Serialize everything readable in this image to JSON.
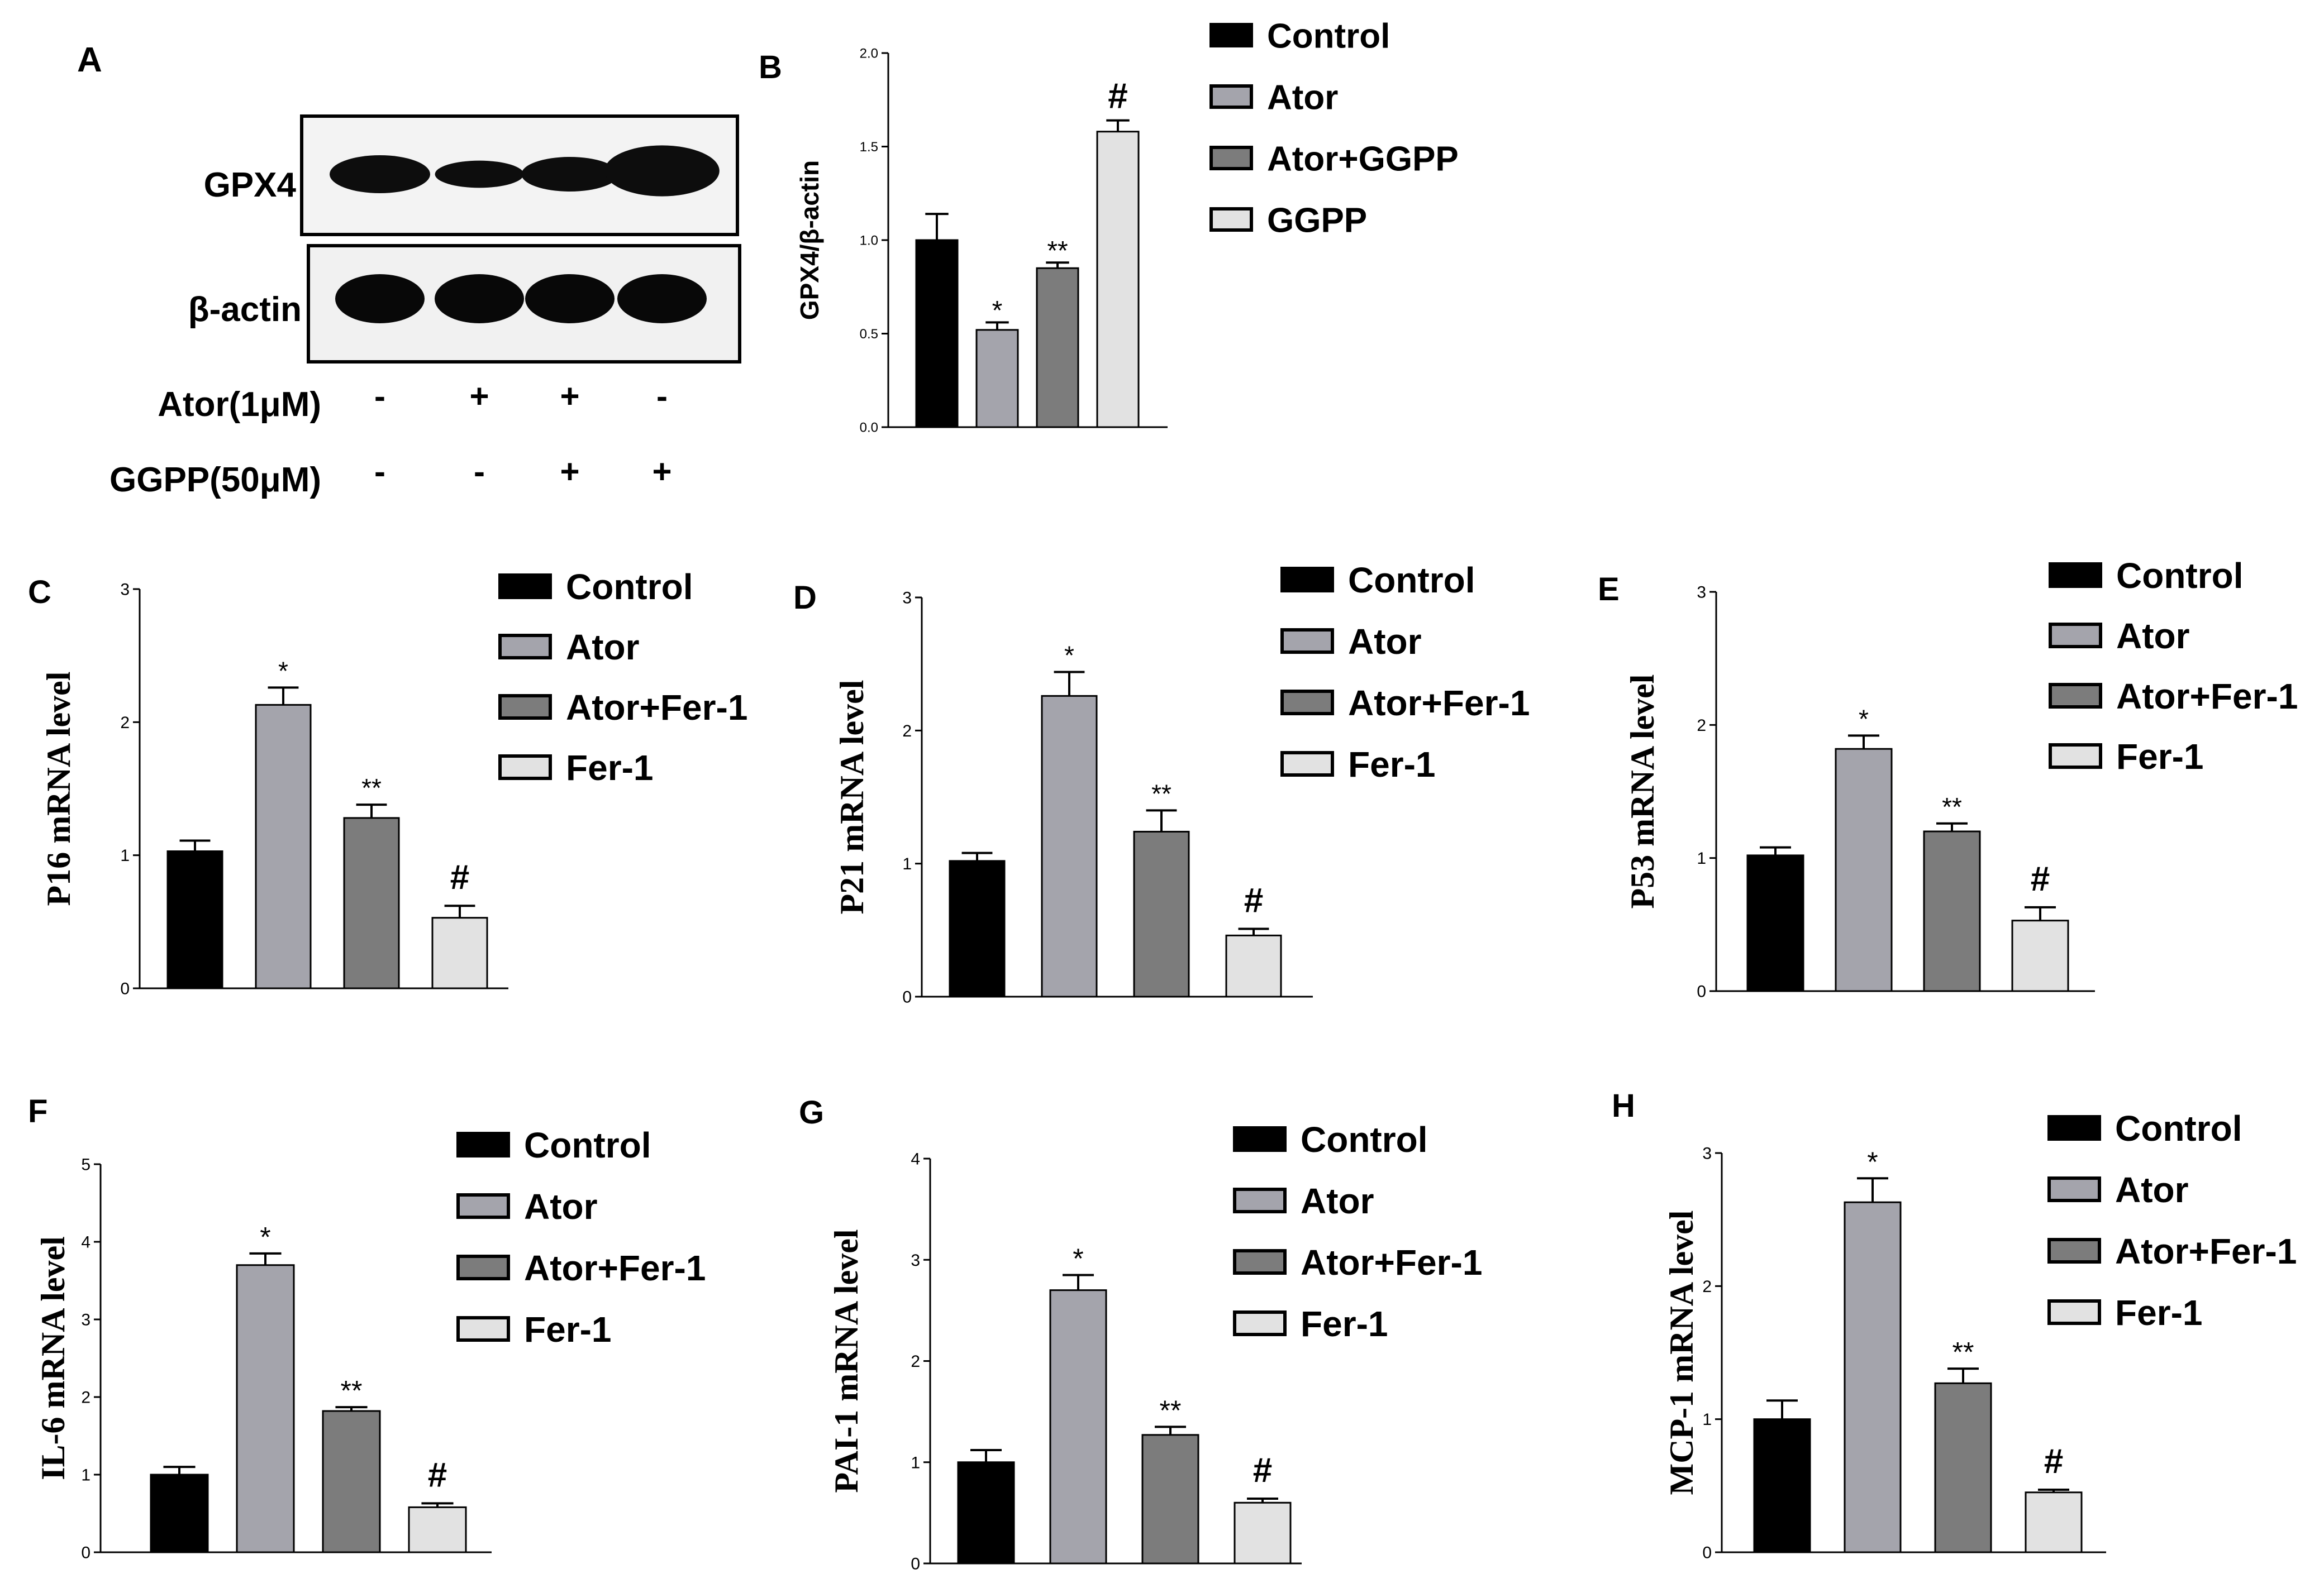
{
  "colors": {
    "control": "#000000",
    "ator": "#a4a4ac",
    "combo": "#7c7c7c",
    "single": "#e2e2e2",
    "axis": "#000000"
  },
  "western_blot": {
    "panel_letter": "A",
    "rows": [
      "GPX4",
      "β-actin"
    ],
    "treatments": [
      {
        "label": "Ator(1μM)",
        "marks": [
          "-",
          "+",
          "+",
          "-"
        ]
      },
      {
        "label": "GGPP(50μM)",
        "marks": [
          "-",
          "-",
          "+",
          "+"
        ]
      }
    ],
    "band_intensity": {
      "GPX4": [
        1.0,
        0.52,
        0.85,
        1.58
      ],
      "β-actin": [
        1.0,
        1.0,
        1.0,
        1.0
      ]
    }
  },
  "chart_data": [
    {
      "panel": "B",
      "type": "bar",
      "ylabel": "GPX4/β-actin",
      "ylabel_serif": false,
      "categories": [
        "Control",
        "Ator",
        "Ator+GGPP",
        "GGPP"
      ],
      "values": [
        1.0,
        0.52,
        0.85,
        1.58
      ],
      "errors": [
        0.14,
        0.04,
        0.03,
        0.06
      ],
      "significance": [
        "",
        "*",
        "**",
        "#"
      ],
      "ylim": [
        0,
        2.0
      ],
      "ticks": [
        0.0,
        0.5,
        1.0,
        1.5,
        2.0
      ],
      "tick_labels": [
        "0.0",
        "0.5",
        "1.0",
        "1.5",
        "2.0"
      ],
      "legend": [
        "Control",
        "Ator",
        "Ator+GGPP",
        "GGPP"
      ]
    },
    {
      "panel": "C",
      "panel_label": "C",
      "type": "bar",
      "ylabel": "P16 mRNA level",
      "ylabel_serif": true,
      "categories": [
        "Control",
        "Ator",
        "Ator+Fer-1",
        "Fer-1"
      ],
      "values": [
        1.03,
        2.13,
        1.28,
        0.53
      ],
      "errors": [
        0.08,
        0.13,
        0.1,
        0.09
      ],
      "significance": [
        "",
        "*",
        "**",
        "#"
      ],
      "ylim": [
        0,
        3
      ],
      "ticks": [
        0,
        1,
        2,
        3
      ],
      "tick_labels": [
        "0",
        "1",
        "2",
        "3"
      ],
      "legend": [
        "Control",
        "Ator",
        "Ator+Fer-1",
        "Fer-1"
      ]
    },
    {
      "panel": "D",
      "panel_label": "D",
      "type": "bar",
      "ylabel": "P21 mRNA level",
      "ylabel_serif": true,
      "categories": [
        "Control",
        "Ator",
        "Ator+Fer-1",
        "Fer-1"
      ],
      "values": [
        1.02,
        2.26,
        1.24,
        0.46
      ],
      "errors": [
        0.06,
        0.18,
        0.16,
        0.05
      ],
      "significance": [
        "",
        "*",
        "**",
        "#"
      ],
      "ylim": [
        0,
        3
      ],
      "ticks": [
        0,
        1,
        2,
        3
      ],
      "tick_labels": [
        "0",
        "1",
        "2",
        "3"
      ],
      "legend": [
        "Control",
        "Ator",
        "Ator+Fer-1",
        "Fer-1"
      ]
    },
    {
      "panel": "E",
      "panel_label": "E",
      "type": "bar",
      "ylabel": "P53 mRNA level",
      "ylabel_serif": true,
      "categories": [
        "Control",
        "Ator",
        "Ator+Fer-1",
        "Fer-1"
      ],
      "values": [
        1.02,
        1.82,
        1.2,
        0.53
      ],
      "errors": [
        0.06,
        0.1,
        0.06,
        0.1
      ],
      "significance": [
        "",
        "*",
        "**",
        "#"
      ],
      "ylim": [
        0,
        3
      ],
      "ticks": [
        0,
        1,
        2,
        3
      ],
      "tick_labels": [
        "0",
        "1",
        "2",
        "3"
      ],
      "legend": [
        "Control",
        "Ator",
        "Ator+Fer-1",
        "Fer-1"
      ]
    },
    {
      "panel": "F",
      "panel_label": "F",
      "type": "bar",
      "ylabel": "IL-6 mRNA level",
      "ylabel_serif": true,
      "categories": [
        "Control",
        "Ator",
        "Ator+Fer-1",
        "Fer-1"
      ],
      "values": [
        1.0,
        3.7,
        1.82,
        0.58
      ],
      "errors": [
        0.1,
        0.15,
        0.05,
        0.05
      ],
      "significance": [
        "",
        "*",
        "**",
        "#"
      ],
      "ylim": [
        0,
        5
      ],
      "ticks": [
        0,
        1,
        2,
        3,
        4,
        5
      ],
      "tick_labels": [
        "0",
        "1",
        "2",
        "3",
        "4",
        "5"
      ],
      "legend": [
        "Control",
        "Ator",
        "Ator+Fer-1",
        "Fer-1"
      ]
    },
    {
      "panel": "G",
      "panel_label": "G",
      "type": "bar",
      "ylabel": "PAI-1 mRNA level",
      "ylabel_serif": true,
      "categories": [
        "Control",
        "Ator",
        "Ator+Fer-1",
        "Fer-1"
      ],
      "values": [
        1.0,
        2.7,
        1.27,
        0.6
      ],
      "errors": [
        0.12,
        0.15,
        0.08,
        0.04
      ],
      "significance": [
        "",
        "*",
        "**",
        "#"
      ],
      "ylim": [
        0,
        4
      ],
      "ticks": [
        0,
        1,
        2,
        3,
        4
      ],
      "tick_labels": [
        "0",
        "1",
        "2",
        "3",
        "4"
      ],
      "legend": [
        "Control",
        "Ator",
        "Ator+Fer-1",
        "Fer-1"
      ]
    },
    {
      "panel": "H",
      "panel_label": "H",
      "type": "bar",
      "ylabel": "MCP-1 mRNA level",
      "ylabel_serif": true,
      "categories": [
        "Control",
        "Ator",
        "Ator+Fer-1",
        "Fer-1"
      ],
      "values": [
        1.0,
        2.63,
        1.27,
        0.45
      ],
      "errors": [
        0.14,
        0.18,
        0.11,
        0.02
      ],
      "significance": [
        "",
        "*",
        "**",
        "#"
      ],
      "ylim": [
        0,
        3
      ],
      "ticks": [
        0,
        1,
        2,
        3
      ],
      "tick_labels": [
        "0",
        "1",
        "2",
        "3"
      ],
      "legend": [
        "Control",
        "Ator",
        "Ator+Fer-1",
        "Fer-1"
      ]
    }
  ]
}
